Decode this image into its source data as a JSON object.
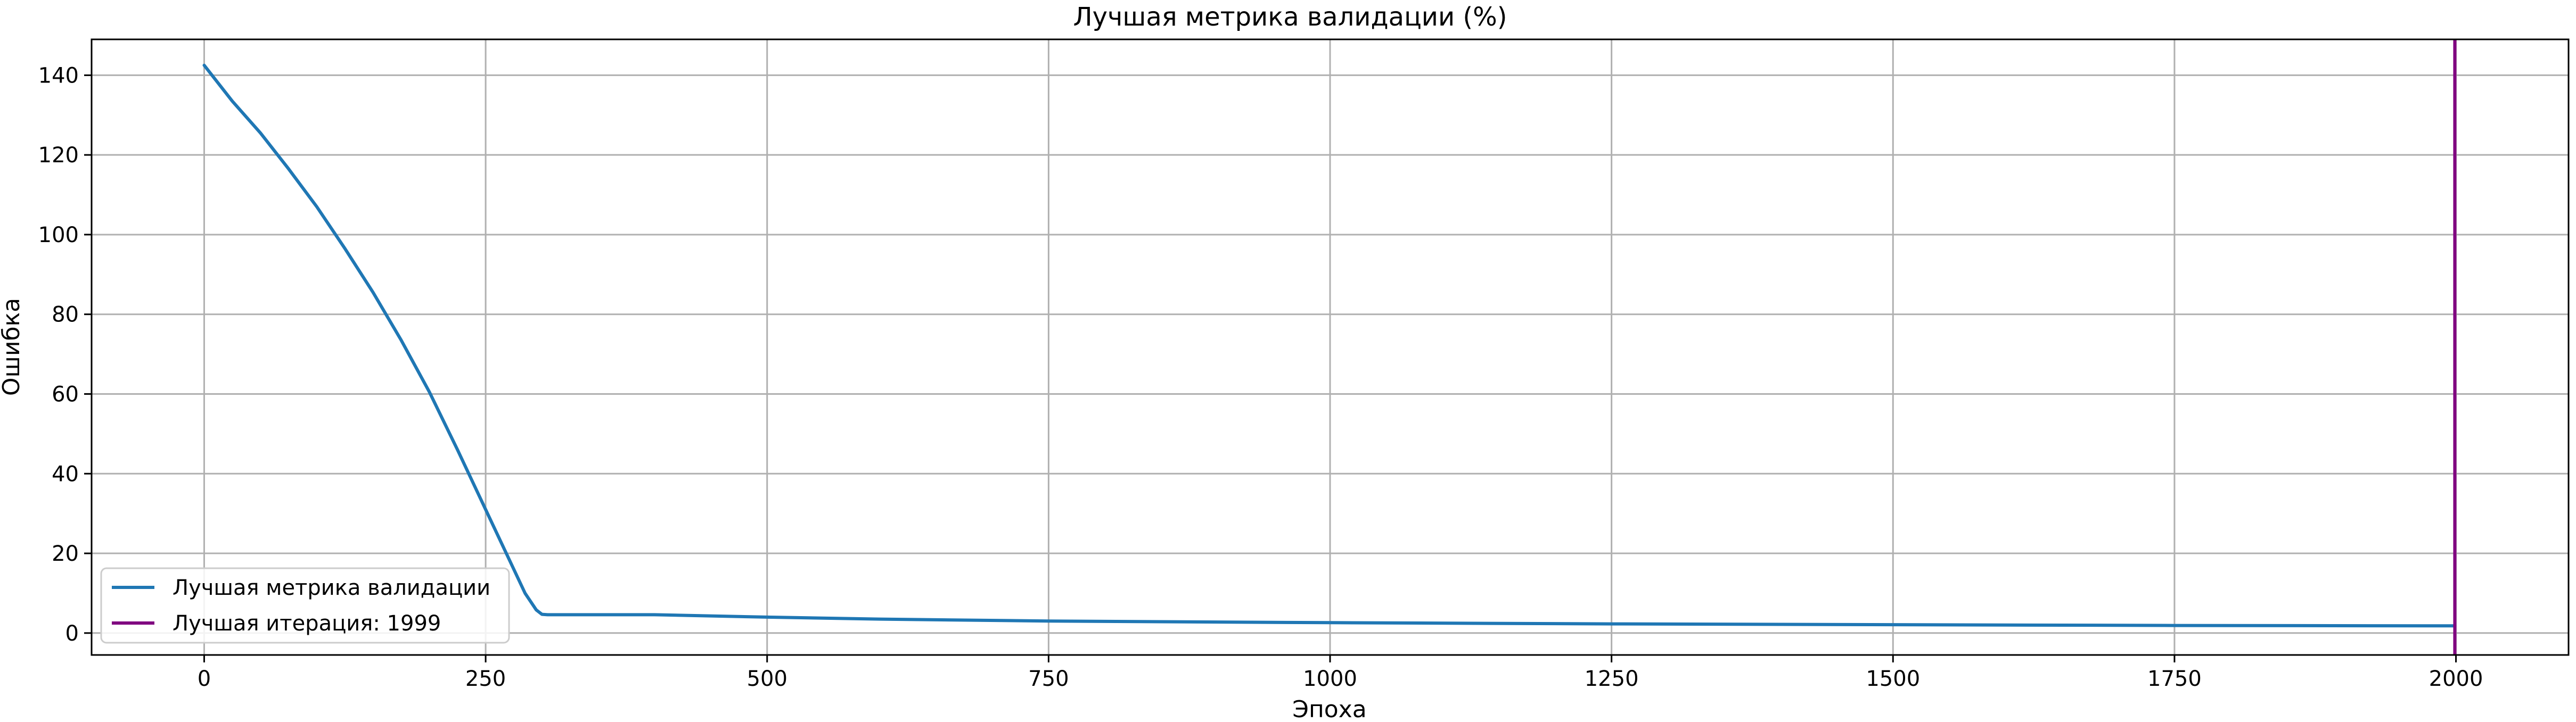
{
  "chart_data": {
    "type": "line",
    "title": "Лучшая метрика валидации (%)",
    "xlabel": "Эпоха",
    "ylabel": "Ошибка",
    "xlim": [
      -100,
      2100
    ],
    "ylim": [
      -5.5,
      149
    ],
    "grid": true,
    "legend_position": "lower-left",
    "x_ticks": [
      0,
      250,
      500,
      750,
      1000,
      1250,
      1500,
      1750,
      2000
    ],
    "y_ticks": [
      0,
      20,
      40,
      60,
      80,
      100,
      120,
      140
    ],
    "x_tick_labels": [
      "0",
      "250",
      "500",
      "750",
      "1000",
      "1250",
      "1500",
      "1750",
      "2000"
    ],
    "y_tick_labels": [
      "0",
      "20",
      "40",
      "60",
      "80",
      "100",
      "120",
      "140"
    ],
    "series": [
      {
        "name": "Лучшая метрика валидации",
        "color": "#1f77b4",
        "x": [
          0,
          25,
          50,
          75,
          100,
          125,
          150,
          175,
          200,
          225,
          250,
          270,
          285,
          295,
          300,
          305,
          325,
          350,
          400,
          500,
          600,
          750,
          1000,
          1250,
          1500,
          1750,
          1999
        ],
        "y": [
          142.5,
          133.5,
          125.5,
          116.5,
          107.0,
          96.5,
          85.5,
          73.5,
          60.5,
          46.0,
          31.0,
          19.0,
          10.0,
          5.8,
          4.7,
          4.6,
          4.6,
          4.6,
          4.6,
          4.0,
          3.5,
          3.0,
          2.6,
          2.3,
          2.1,
          1.9,
          1.8
        ]
      }
    ],
    "vline": {
      "name": "Лучшая итерация: 1999",
      "x": 1999,
      "color": "#800080"
    }
  }
}
